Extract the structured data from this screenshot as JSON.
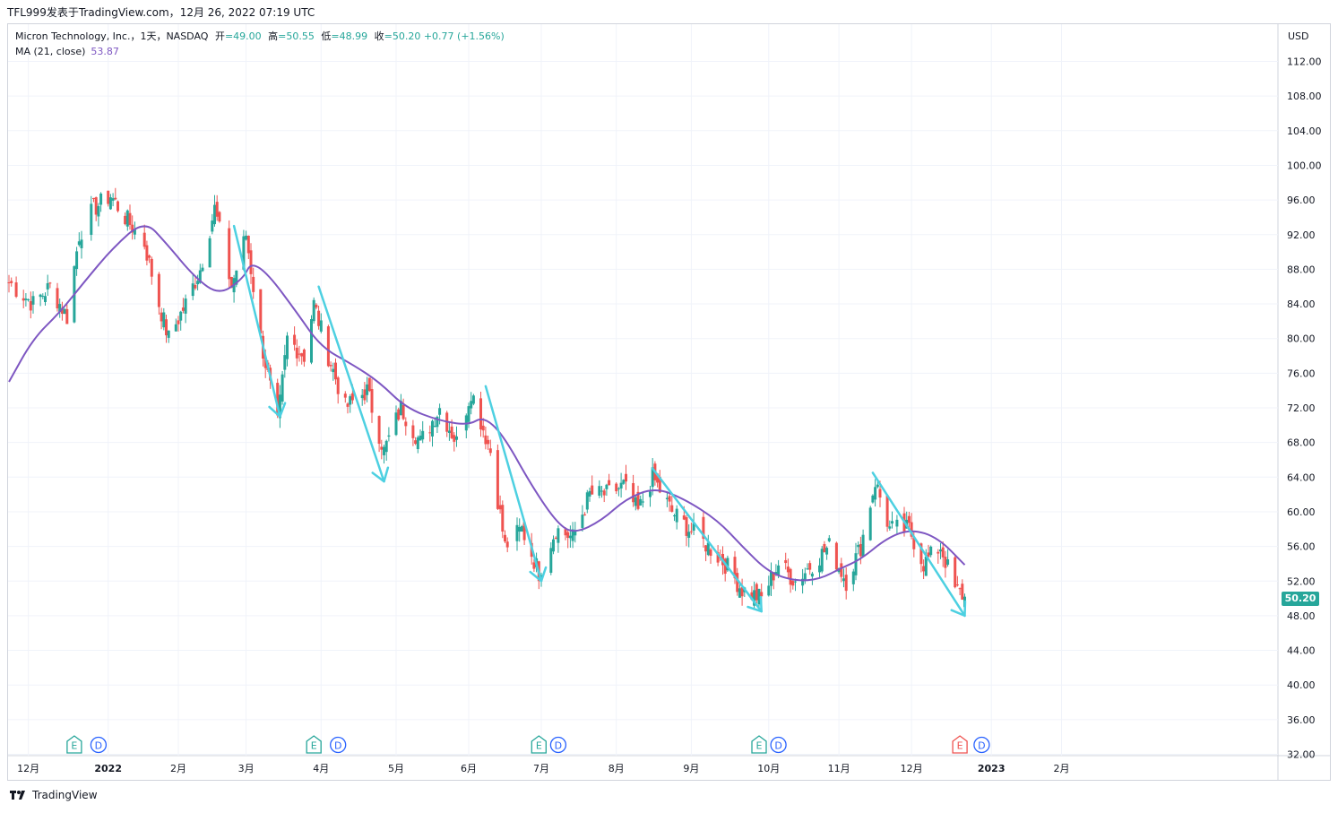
{
  "header": {
    "publisher": "TFL999发表于TradingView.com",
    "separator": "，",
    "date": "12月 26, 2022 07:19 UTC"
  },
  "legend": {
    "symbol": "Micron Technology, Inc.，1天，NASDAQ",
    "open_label": "开",
    "open": "=49.00",
    "high_label": "高",
    "high": "=50.55",
    "low_label": "低",
    "low": "=48.99",
    "close_label": "收",
    "close": "=50.20",
    "change": "+0.77 (+1.56%)",
    "ma_label": "MA (21, close)",
    "ma_value": "53.87"
  },
  "price_axis": {
    "currency": "USD",
    "last_price": "50.20"
  },
  "footer": {
    "brand": "TradingView"
  },
  "colors": {
    "up": "#26a69a",
    "down": "#ef5350",
    "ma": "#7e57c2",
    "arrow": "#4dd0e1",
    "grid": "#f0f3fa",
    "price_tag": "#26a69a",
    "earnings_green": "#26a69a",
    "earnings_red": "#ef5350",
    "dividend": "#2962ff"
  },
  "chart_data": {
    "type": "candlestick",
    "symbol": "MU",
    "y_ticks": [
      112,
      108,
      104,
      100,
      96,
      92,
      88,
      84,
      80,
      76,
      72,
      68,
      64,
      60,
      56,
      52,
      48,
      44,
      40,
      36,
      32
    ],
    "y_tick_labels": [
      "112.00",
      "108.00",
      "104.00",
      "100.00",
      "96.00",
      "92.00",
      "88.00",
      "84.00",
      "80.00",
      "76.00",
      "72.00",
      "68.00",
      "64.00",
      "60.00",
      "56.00",
      "52.00",
      "48.00",
      "44.00",
      "40.00",
      "36.00",
      "32.00"
    ],
    "ylim": [
      32,
      115
    ],
    "x_ticks": [
      {
        "label": "12月",
        "date": "2021-12-01"
      },
      {
        "label": "2022",
        "date": "2022-01-03"
      },
      {
        "label": "2月",
        "date": "2022-02-01"
      },
      {
        "label": "3月",
        "date": "2022-03-01"
      },
      {
        "label": "4月",
        "date": "2022-04-01"
      },
      {
        "label": "5月",
        "date": "2022-05-02"
      },
      {
        "label": "6月",
        "date": "2022-06-01"
      },
      {
        "label": "7月",
        "date": "2022-07-01"
      },
      {
        "label": "8月",
        "date": "2022-08-01"
      },
      {
        "label": "9月",
        "date": "2022-09-01"
      },
      {
        "label": "10月",
        "date": "2022-10-03"
      },
      {
        "label": "11月",
        "date": "2022-11-01"
      },
      {
        "label": "12月",
        "date": "2022-12-01"
      },
      {
        "label": "2023",
        "date": "2023-01-03"
      },
      {
        "label": "2月",
        "date": "2023-02-01"
      }
    ],
    "first_bar_date": "2021-11-23",
    "last_bar_date": "2022-12-23",
    "close_path": [
      {
        "date": "2021-11-23",
        "value": 86.5
      },
      {
        "date": "2021-12-03",
        "value": 84.0
      },
      {
        "date": "2021-12-10",
        "value": 86.0
      },
      {
        "date": "2021-12-17",
        "value": 82.5
      },
      {
        "date": "2021-12-22",
        "value": 92.0
      },
      {
        "date": "2021-12-28",
        "value": 95.0
      },
      {
        "date": "2022-01-04",
        "value": 96.5
      },
      {
        "date": "2022-01-10",
        "value": 94.0
      },
      {
        "date": "2022-01-18",
        "value": 91.0
      },
      {
        "date": "2022-01-24",
        "value": 84.0
      },
      {
        "date": "2022-01-28",
        "value": 80.0
      },
      {
        "date": "2022-02-04",
        "value": 84.0
      },
      {
        "date": "2022-02-10",
        "value": 88.0
      },
      {
        "date": "2022-02-16",
        "value": 95.0
      },
      {
        "date": "2022-02-23",
        "value": 86.0
      },
      {
        "date": "2022-03-01",
        "value": 92.0
      },
      {
        "date": "2022-03-07",
        "value": 80.0
      },
      {
        "date": "2022-03-14",
        "value": 70.0
      },
      {
        "date": "2022-03-18",
        "value": 80.0
      },
      {
        "date": "2022-03-25",
        "value": 78.0
      },
      {
        "date": "2022-03-29",
        "value": 84.0
      },
      {
        "date": "2022-04-04",
        "value": 78.0
      },
      {
        "date": "2022-04-11",
        "value": 72.0
      },
      {
        "date": "2022-04-20",
        "value": 74.0
      },
      {
        "date": "2022-04-27",
        "value": 67.0
      },
      {
        "date": "2022-05-04",
        "value": 72.0
      },
      {
        "date": "2022-05-12",
        "value": 68.0
      },
      {
        "date": "2022-05-20",
        "value": 72.0
      },
      {
        "date": "2022-05-27",
        "value": 68.0
      },
      {
        "date": "2022-06-02",
        "value": 74.0
      },
      {
        "date": "2022-06-10",
        "value": 67.0
      },
      {
        "date": "2022-06-16",
        "value": 56.0
      },
      {
        "date": "2022-06-23",
        "value": 58.0
      },
      {
        "date": "2022-06-30",
        "value": 53.0
      },
      {
        "date": "2022-07-07",
        "value": 58.0
      },
      {
        "date": "2022-07-14",
        "value": 57.0
      },
      {
        "date": "2022-07-21",
        "value": 62.0
      },
      {
        "date": "2022-07-28",
        "value": 62.0
      },
      {
        "date": "2022-08-04",
        "value": 63.0
      },
      {
        "date": "2022-08-10",
        "value": 60.0
      },
      {
        "date": "2022-08-16",
        "value": 64.0
      },
      {
        "date": "2022-08-24",
        "value": 60.0
      },
      {
        "date": "2022-08-31",
        "value": 58.0
      },
      {
        "date": "2022-09-08",
        "value": 56.0
      },
      {
        "date": "2022-09-15",
        "value": 54.0
      },
      {
        "date": "2022-09-22",
        "value": 51.0
      },
      {
        "date": "2022-09-30",
        "value": 50.0
      },
      {
        "date": "2022-10-07",
        "value": 54.0
      },
      {
        "date": "2022-10-14",
        "value": 52.0
      },
      {
        "date": "2022-10-21",
        "value": 54.0
      },
      {
        "date": "2022-10-28",
        "value": 56.0
      },
      {
        "date": "2022-11-04",
        "value": 52.0
      },
      {
        "date": "2022-11-10",
        "value": 56.0
      },
      {
        "date": "2022-11-16",
        "value": 63.5
      },
      {
        "date": "2022-11-22",
        "value": 58.0
      },
      {
        "date": "2022-11-30",
        "value": 58.0
      },
      {
        "date": "2022-12-06",
        "value": 54.0
      },
      {
        "date": "2022-12-13",
        "value": 56.0
      },
      {
        "date": "2022-12-19",
        "value": 51.0
      },
      {
        "date": "2022-12-23",
        "value": 50.2
      }
    ],
    "ma_series": {
      "name": "MA (21, close)",
      "points": [
        {
          "date": "2021-11-23",
          "value": 75.0
        },
        {
          "date": "2021-12-03",
          "value": 80.0
        },
        {
          "date": "2021-12-14",
          "value": 83.0
        },
        {
          "date": "2021-12-24",
          "value": 86.5
        },
        {
          "date": "2022-01-05",
          "value": 90.5
        },
        {
          "date": "2022-01-18",
          "value": 93.7
        },
        {
          "date": "2022-01-27",
          "value": 91.0
        },
        {
          "date": "2022-02-08",
          "value": 87.0
        },
        {
          "date": "2022-02-18",
          "value": 85.0
        },
        {
          "date": "2022-02-28",
          "value": 87.0
        },
        {
          "date": "2022-03-03",
          "value": 88.8
        },
        {
          "date": "2022-03-10",
          "value": 87.5
        },
        {
          "date": "2022-03-22",
          "value": 83.0
        },
        {
          "date": "2022-04-01",
          "value": 79.0
        },
        {
          "date": "2022-04-14",
          "value": 77.0
        },
        {
          "date": "2022-04-25",
          "value": 75.0
        },
        {
          "date": "2022-05-06",
          "value": 72.0
        },
        {
          "date": "2022-05-20",
          "value": 70.5
        },
        {
          "date": "2022-06-01",
          "value": 70.0
        },
        {
          "date": "2022-06-07",
          "value": 71.0
        },
        {
          "date": "2022-06-15",
          "value": 69.0
        },
        {
          "date": "2022-06-27",
          "value": 63.0
        },
        {
          "date": "2022-07-08",
          "value": 58.5
        },
        {
          "date": "2022-07-15",
          "value": 57.5
        },
        {
          "date": "2022-07-26",
          "value": 59.0
        },
        {
          "date": "2022-08-05",
          "value": 61.5
        },
        {
          "date": "2022-08-17",
          "value": 62.8
        },
        {
          "date": "2022-08-29",
          "value": 61.5
        },
        {
          "date": "2022-09-12",
          "value": 59.0
        },
        {
          "date": "2022-09-22",
          "value": 56.0
        },
        {
          "date": "2022-10-03",
          "value": 53.0
        },
        {
          "date": "2022-10-14",
          "value": 52.0
        },
        {
          "date": "2022-10-24",
          "value": 52.2
        },
        {
          "date": "2022-11-02",
          "value": 53.5
        },
        {
          "date": "2022-11-10",
          "value": 54.5
        },
        {
          "date": "2022-11-21",
          "value": 57.0
        },
        {
          "date": "2022-12-01",
          "value": 58.0
        },
        {
          "date": "2022-12-12",
          "value": 57.0
        },
        {
          "date": "2022-12-23",
          "value": 53.87
        }
      ]
    },
    "trend_arrows": [
      {
        "from": {
          "date": "2022-02-24",
          "value": 93.0
        },
        "to": {
          "date": "2022-03-15",
          "value": 71.0
        }
      },
      {
        "from": {
          "date": "2022-03-31",
          "value": 86.0
        },
        "to": {
          "date": "2022-04-27",
          "value": 63.5
        }
      },
      {
        "from": {
          "date": "2022-06-08",
          "value": 74.5
        },
        "to": {
          "date": "2022-07-01",
          "value": 52.0
        }
      },
      {
        "from": {
          "date": "2022-08-16",
          "value": 65.0
        },
        "to": {
          "date": "2022-09-30",
          "value": 48.5
        }
      },
      {
        "from": {
          "date": "2022-11-15",
          "value": 64.5
        },
        "to": {
          "date": "2022-12-23",
          "value": 48.0
        }
      }
    ],
    "events": [
      {
        "type": "E",
        "label": "E",
        "date": "2021-12-20",
        "color": "green"
      },
      {
        "type": "D",
        "label": "D",
        "date": "2021-12-30",
        "color": "blue"
      },
      {
        "type": "E",
        "label": "E",
        "date": "2022-03-29",
        "color": "green"
      },
      {
        "type": "D",
        "label": "D",
        "date": "2022-04-08",
        "color": "blue"
      },
      {
        "type": "E",
        "label": "E",
        "date": "2022-06-30",
        "color": "green"
      },
      {
        "type": "D",
        "label": "D",
        "date": "2022-07-08",
        "color": "blue"
      },
      {
        "type": "E",
        "label": "E",
        "date": "2022-09-29",
        "color": "green"
      },
      {
        "type": "D",
        "label": "D",
        "date": "2022-10-07",
        "color": "blue"
      },
      {
        "type": "E",
        "label": "E",
        "date": "2022-12-21",
        "color": "red"
      },
      {
        "type": "D",
        "label": "D",
        "date": "2022-12-30",
        "color": "blue"
      }
    ]
  }
}
